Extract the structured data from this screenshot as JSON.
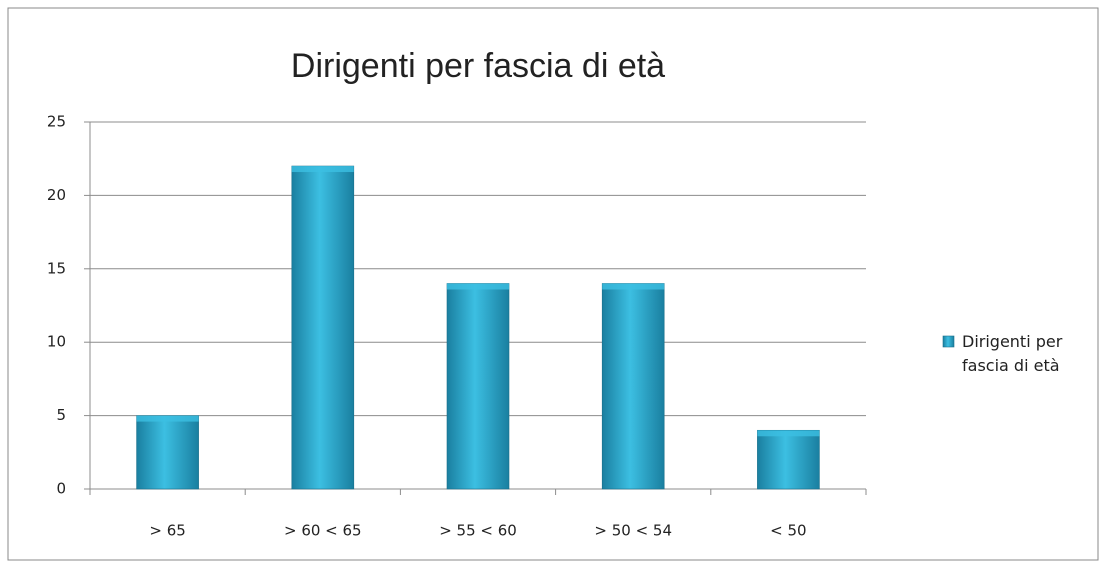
{
  "chart_data": {
    "type": "bar",
    "title": "Dirigenti per fascia di età",
    "categories": [
      "> 65",
      "> 60 < 65",
      "> 55 < 60",
      "> 50 < 54",
      "< 50"
    ],
    "series": [
      {
        "name": "Dirigenti per fascia di età",
        "color": "#3cbfe2",
        "values": [
          5,
          22,
          14,
          14,
          4
        ]
      }
    ],
    "ylim": [
      0,
      25
    ],
    "yticks": [
      0,
      5,
      10,
      15,
      20,
      25
    ],
    "grid": true,
    "legend": "right"
  }
}
